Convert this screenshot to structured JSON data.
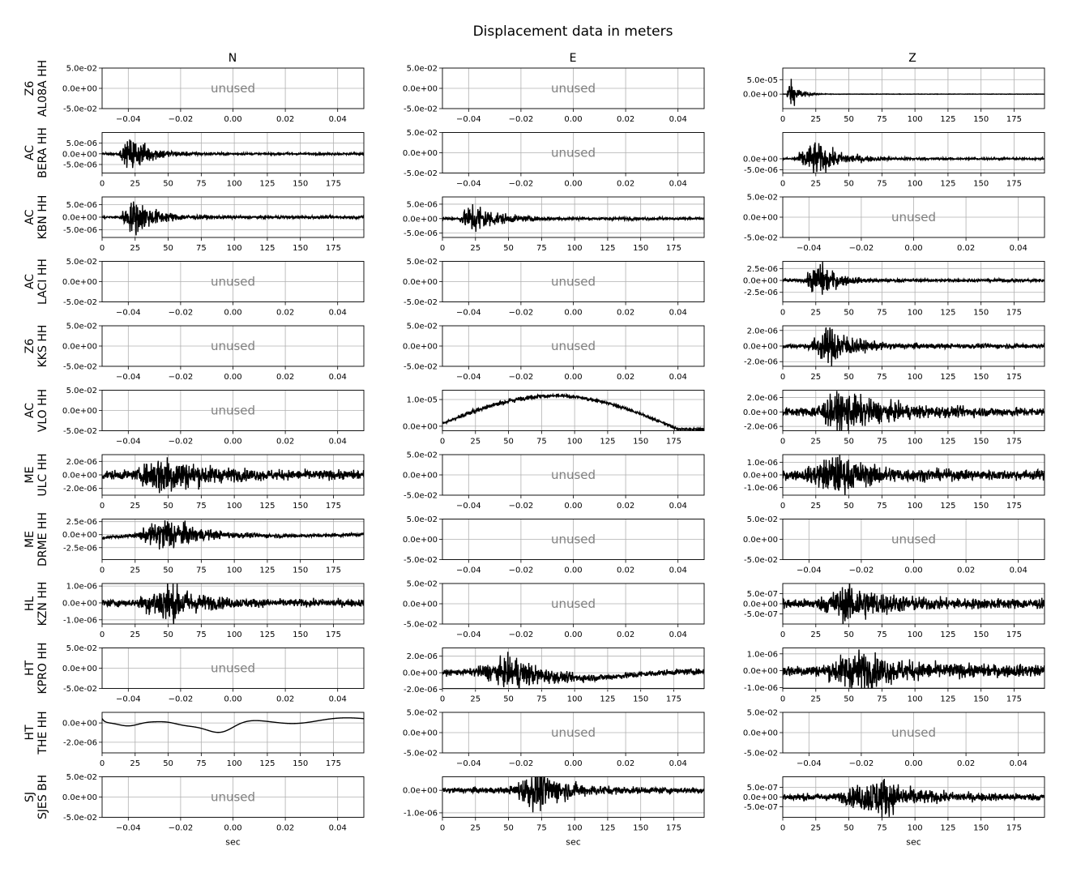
{
  "title": "Displacement data in meters",
  "columns": [
    "N",
    "E",
    "Z"
  ],
  "unused_text": "unused",
  "x_axis_label": "sec",
  "placeholder": {
    "xticks": [
      "−0.04",
      "−0.02",
      "0.00",
      "0.02",
      "0.04"
    ],
    "yticks": [
      "5.0e-02",
      "0.0e+00",
      "-5.0e-02"
    ]
  },
  "time_xticks": [
    "0",
    "25",
    "50",
    "75",
    "100",
    "125",
    "150",
    "175"
  ],
  "rows": [
    {
      "net": "Z6",
      "sta": "AL08A HH"
    },
    {
      "net": "AC",
      "sta": "BERA HH"
    },
    {
      "net": "AC",
      "sta": "KBN HH"
    },
    {
      "net": "AC",
      "sta": "LACI HH"
    },
    {
      "net": "Z6",
      "sta": "KKS HH"
    },
    {
      "net": "AC",
      "sta": "VLO HH"
    },
    {
      "net": "ME",
      "sta": "ULC HH"
    },
    {
      "net": "ME",
      "sta": "DRME HH"
    },
    {
      "net": "HL",
      "sta": "KZN HH"
    },
    {
      "net": "HT",
      "sta": "KPRO HH"
    },
    {
      "net": "HT",
      "sta": "THE HH"
    },
    {
      "net": "SJ",
      "sta": "SJES BH"
    }
  ],
  "chart_data": {
    "type": "line",
    "title": "Displacement data in meters",
    "xlabel": "sec",
    "x_range_sec": [
      0,
      198
    ],
    "grid": true,
    "note": "grid of seismogram subplots, rows = stations, columns = components N/E/Z",
    "panels": [
      [
        {
          "row": 0,
          "col": "N",
          "unused": true
        },
        {
          "row": 0,
          "col": "E",
          "unused": true
        },
        {
          "row": 0,
          "col": "Z",
          "ylim": [
            -5e-05,
            9e-05
          ],
          "yticks": [
            5e-05,
            0.0
          ],
          "ytick_labels": [
            "5.0e-05",
            "0.0e+00"
          ],
          "onset": 3,
          "peak_t": 5,
          "decay": 6,
          "amp": 5.5e-05,
          "noise": 0.01,
          "trend": "none"
        }
      ],
      [
        {
          "row": 1,
          "col": "N",
          "ylim": [
            -9e-06,
            1e-05
          ],
          "yticks": [
            5e-06,
            0.0,
            -5e-06
          ],
          "ytick_labels": [
            "5.0e-06",
            "0.0e+00",
            "-5.0e-06"
          ],
          "onset": 12,
          "peak_t": 23,
          "decay": 15,
          "amp": 7.5e-06,
          "noise": 0.06,
          "trend": "none"
        },
        {
          "row": 1,
          "col": "E",
          "unused": true
        },
        {
          "row": 1,
          "col": "Z",
          "ylim": [
            -6.5e-06,
            1.2e-05
          ],
          "yticks": [
            0.0,
            -5e-06
          ],
          "ytick_labels": [
            "0.0e+00",
            "-5.0e-06"
          ],
          "onset": 8,
          "peak_t": 24,
          "decay": 18,
          "amp": 7e-06,
          "noise": 0.06,
          "trend": "none"
        }
      ],
      [
        {
          "row": 2,
          "col": "N",
          "ylim": [
            -8e-06,
            8e-06
          ],
          "yticks": [
            5e-06,
            0.0,
            -5e-06
          ],
          "ytick_labels": [
            "5.0e-06",
            "0.0e+00",
            "-5.0e-06"
          ],
          "onset": 12,
          "peak_t": 25,
          "decay": 15,
          "amp": 6.5e-06,
          "noise": 0.08,
          "trend": "none"
        },
        {
          "row": 2,
          "col": "E",
          "ylim": [
            -6.5e-06,
            7.5e-06
          ],
          "yticks": [
            5e-06,
            0.0,
            -5e-06
          ],
          "ytick_labels": [
            "5.0e-06",
            "0.0e+00",
            "-5.0e-06"
          ],
          "onset": 12,
          "peak_t": 24,
          "decay": 15,
          "amp": 5.5e-06,
          "noise": 0.08,
          "trend": "none"
        },
        {
          "row": 2,
          "col": "Z",
          "unused": true
        }
      ],
      [
        {
          "row": 3,
          "col": "N",
          "unused": true
        },
        {
          "row": 3,
          "col": "E",
          "unused": true
        },
        {
          "row": 3,
          "col": "Z",
          "ylim": [
            -4.5e-06,
            4e-06
          ],
          "yticks": [
            2.5e-06,
            0.0,
            -2.5e-06
          ],
          "ytick_labels": [
            "2.5e-06",
            "0.0e+00",
            "-2.5e-06"
          ],
          "onset": 15,
          "peak_t": 28,
          "decay": 12,
          "amp": 3.5e-06,
          "noise": 0.08,
          "trend": "none"
        }
      ],
      [
        {
          "row": 4,
          "col": "N",
          "unused": true
        },
        {
          "row": 4,
          "col": "E",
          "unused": true
        },
        {
          "row": 4,
          "col": "Z",
          "ylim": [
            -2.6e-06,
            2.6e-06
          ],
          "yticks": [
            2e-06,
            0.0,
            -2e-06
          ],
          "ytick_labels": [
            "2.0e-06",
            "0.0e+00",
            "-2.0e-06"
          ],
          "onset": 18,
          "peak_t": 37,
          "decay": 15,
          "amp": 2.3e-06,
          "noise": 0.12,
          "trend": "none"
        }
      ],
      [
        {
          "row": 5,
          "col": "N",
          "unused": true
        },
        {
          "row": 5,
          "col": "E",
          "ylim": [
            -1.7e-06,
            1.35e-05
          ],
          "yticks": [
            1e-05,
            0.0
          ],
          "ytick_labels": [
            "1.0e-05",
            "0.0e+00"
          ],
          "onset": 5,
          "peak_t": 30,
          "decay": 80,
          "amp": 6e-07,
          "noise": 0.5,
          "trend": "hump"
        },
        {
          "row": 5,
          "col": "Z",
          "ylim": [
            -2.6e-06,
            3e-06
          ],
          "yticks": [
            2e-06,
            0.0,
            -2e-06
          ],
          "ytick_labels": [
            "2.0e-06",
            "0.0e+00",
            "-2.0e-06"
          ],
          "onset": 20,
          "peak_t": 45,
          "decay": 30,
          "amp": 2.2e-06,
          "noise": 0.25,
          "trend": "none"
        }
      ],
      [
        {
          "row": 6,
          "col": "N",
          "ylim": [
            -3e-06,
            3e-06
          ],
          "yticks": [
            2e-06,
            0.0,
            -2e-06
          ],
          "ytick_labels": [
            "2.0e-06",
            "0.0e+00",
            "-2.0e-06"
          ],
          "onset": 25,
          "peak_t": 47,
          "decay": 25,
          "amp": 2.5e-06,
          "noise": 0.25,
          "trend": "none"
        },
        {
          "row": 6,
          "col": "E",
          "unused": true
        },
        {
          "row": 6,
          "col": "Z",
          "ylim": [
            -1.6e-06,
            1.6e-06
          ],
          "yticks": [
            1e-06,
            0.0,
            -1e-06
          ],
          "ytick_labels": [
            "1.0e-06",
            "0.0e+00",
            "-1.0e-06"
          ],
          "onset": 15,
          "peak_t": 40,
          "decay": 25,
          "amp": 1.2e-06,
          "noise": 0.3,
          "trend": "none"
        }
      ],
      [
        {
          "row": 7,
          "col": "N",
          "ylim": [
            -4.8e-06,
            3e-06
          ],
          "yticks": [
            2.5e-06,
            0.0,
            -2.5e-06
          ],
          "ytick_labels": [
            "2.5e-06",
            "0.0e+00",
            "-2.5e-06"
          ],
          "onset": 24,
          "peak_t": 50,
          "decay": 20,
          "amp": 3e-06,
          "noise": 0.1,
          "trend": "rise"
        },
        {
          "row": 7,
          "col": "E",
          "unused": true
        },
        {
          "row": 7,
          "col": "Z",
          "unused": true
        }
      ],
      [
        {
          "row": 8,
          "col": "N",
          "ylim": [
            -1.25e-06,
            1.15e-06
          ],
          "yticks": [
            1e-06,
            0.0,
            -1e-06
          ],
          "ytick_labels": [
            "1.0e-06",
            "0.0e+00",
            "-1.0e-06"
          ],
          "onset": 25,
          "peak_t": 50,
          "decay": 20,
          "amp": 1e-06,
          "noise": 0.2,
          "trend": "none"
        },
        {
          "row": 8,
          "col": "E",
          "unused": true
        },
        {
          "row": 8,
          "col": "Z",
          "ylim": [
            -1e-06,
            1e-06
          ],
          "yticks": [
            5e-07,
            0.0,
            -5e-07
          ],
          "ytick_labels": [
            "5.0e-07",
            "0.0e+00",
            "-5.0e-07"
          ],
          "onset": 25,
          "peak_t": 52,
          "decay": 25,
          "amp": 7.5e-07,
          "noise": 0.3,
          "trend": "none"
        }
      ],
      [
        {
          "row": 9,
          "col": "N",
          "unused": true
        },
        {
          "row": 9,
          "col": "E",
          "ylim": [
            -1.9e-06,
            3e-06
          ],
          "yticks": [
            2e-06,
            0.0,
            -2e-06
          ],
          "ytick_labels": [
            "2.0e-06",
            "0.0e+00",
            "-2.0e-06"
          ],
          "onset": 20,
          "peak_t": 56,
          "decay": 20,
          "amp": 1.6e-06,
          "noise": 0.2,
          "trend": "dip"
        },
        {
          "row": 9,
          "col": "Z",
          "ylim": [
            -1.05e-06,
            1.35e-06
          ],
          "yticks": [
            1e-06,
            0.0,
            -1e-06
          ],
          "ytick_labels": [
            "1.0e-06",
            "0.0e+00",
            "-1.0e-06"
          ],
          "onset": 30,
          "peak_t": 55,
          "decay": 30,
          "amp": 9e-07,
          "noise": 0.35,
          "trend": "none"
        }
      ],
      [
        {
          "row": 10,
          "col": "N",
          "ylim": [
            -3.1e-06,
            1.1e-06
          ],
          "yticks": [
            0.0,
            -2e-06
          ],
          "ytick_labels": [
            "0.0e+00",
            "-2.0e-06"
          ],
          "onset": 0,
          "peak_t": 0,
          "decay": 1,
          "amp": 0.0,
          "noise": 0.08,
          "trend": "the"
        },
        {
          "row": 10,
          "col": "E",
          "unused": true
        },
        {
          "row": 10,
          "col": "Z",
          "unused": true
        }
      ],
      [
        {
          "row": 11,
          "col": "N",
          "unused": true
        },
        {
          "row": 11,
          "col": "E",
          "ylim": [
            -1.2e-06,
            6e-07
          ],
          "yticks": [
            0.0,
            -1e-06
          ],
          "ytick_labels": [
            "0.0e+00",
            "-1.0e-06"
          ],
          "onset": 50,
          "peak_t": 72,
          "decay": 20,
          "amp": 8e-07,
          "noise": 0.15,
          "trend": "none"
        },
        {
          "row": 11,
          "col": "Z",
          "ylim": [
            -1.05e-06,
            1.05e-06
          ],
          "yticks": [
            5e-07,
            0.0,
            -5e-07
          ],
          "ytick_labels": [
            "5.0e-07",
            "0.0e+00",
            "-5.0e-07"
          ],
          "onset": 40,
          "peak_t": 75,
          "decay": 20,
          "amp": 8.5e-07,
          "noise": 0.2,
          "trend": "none"
        }
      ]
    ]
  }
}
